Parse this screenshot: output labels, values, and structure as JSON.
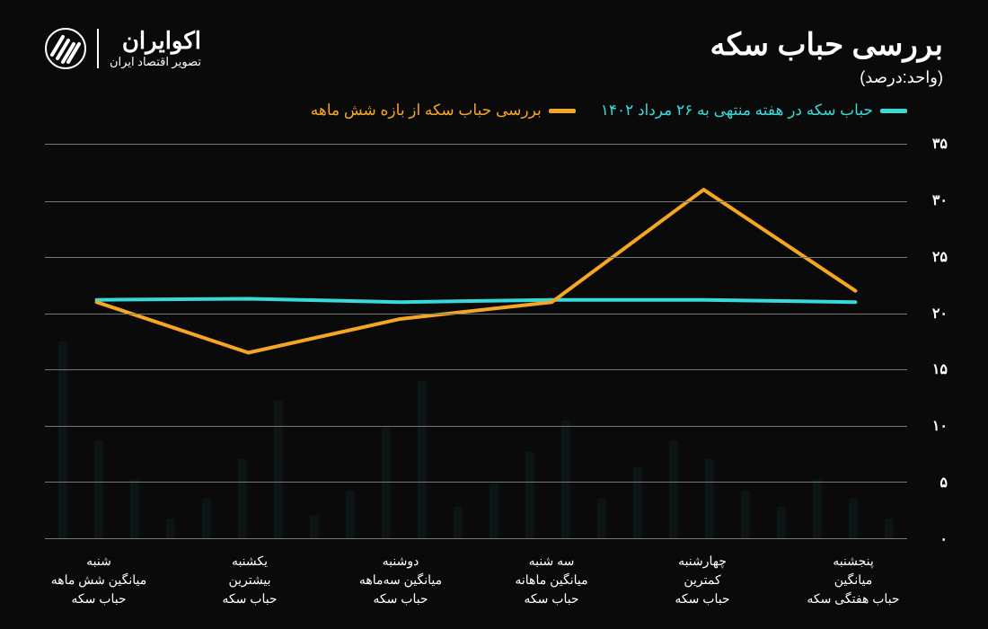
{
  "header": {
    "title": "بررسی حباب سکه",
    "subtitle": "(واحد:درصد)"
  },
  "logo": {
    "main": "اکوایران",
    "sub": "تصویر اقتصاد ایران"
  },
  "legend": {
    "series1": {
      "label": "حباب سکه در هفته منتهی به ۲۶ مرداد ۱۴۰۲",
      "color": "#38d9d9"
    },
    "series2": {
      "label": "بررسی حباب سکه از بازه شش ماهه",
      "color": "#f5a623"
    }
  },
  "chart": {
    "type": "line",
    "background_color": "#0a0a0a",
    "grid_color": "#777777",
    "ylim": [
      0,
      35
    ],
    "ytick_step": 5,
    "yticks": [
      "۰",
      "۵",
      "۱۰",
      "۱۵",
      "۲۰",
      "۲۵",
      "۳۰",
      "۳۵"
    ],
    "line_width": 4,
    "categories": [
      "شنبه\nمیانگین شش ماهه\nحباب سکه",
      "یکشنبه\nبیشترین\nحباب سکه",
      "دوشنبه\nمیانگین سه‌ماهه\nحباب سکه",
      "سه شنبه\nمیانگین ماهانه\nحباب سکه",
      "چهارشنبه\nکمترین\nحباب سکه",
      "پنجشنبه\nمیانگین\nحباب هفتگی سکه"
    ],
    "series": [
      {
        "name": "weekly",
        "color": "#38d9d9",
        "values": [
          21,
          21.2,
          21.2,
          21,
          21.3,
          21.2
        ]
      },
      {
        "name": "sixmonth",
        "color": "#f5a623",
        "values": [
          22,
          31,
          21,
          19.5,
          16.5,
          21
        ]
      }
    ],
    "bg_bar_heights": [
      5,
      10,
      15,
      8,
      12,
      20,
      25,
      18,
      10,
      30,
      22,
      14,
      8,
      40,
      28,
      12,
      6,
      35,
      20,
      10,
      5,
      15,
      25,
      50
    ]
  }
}
